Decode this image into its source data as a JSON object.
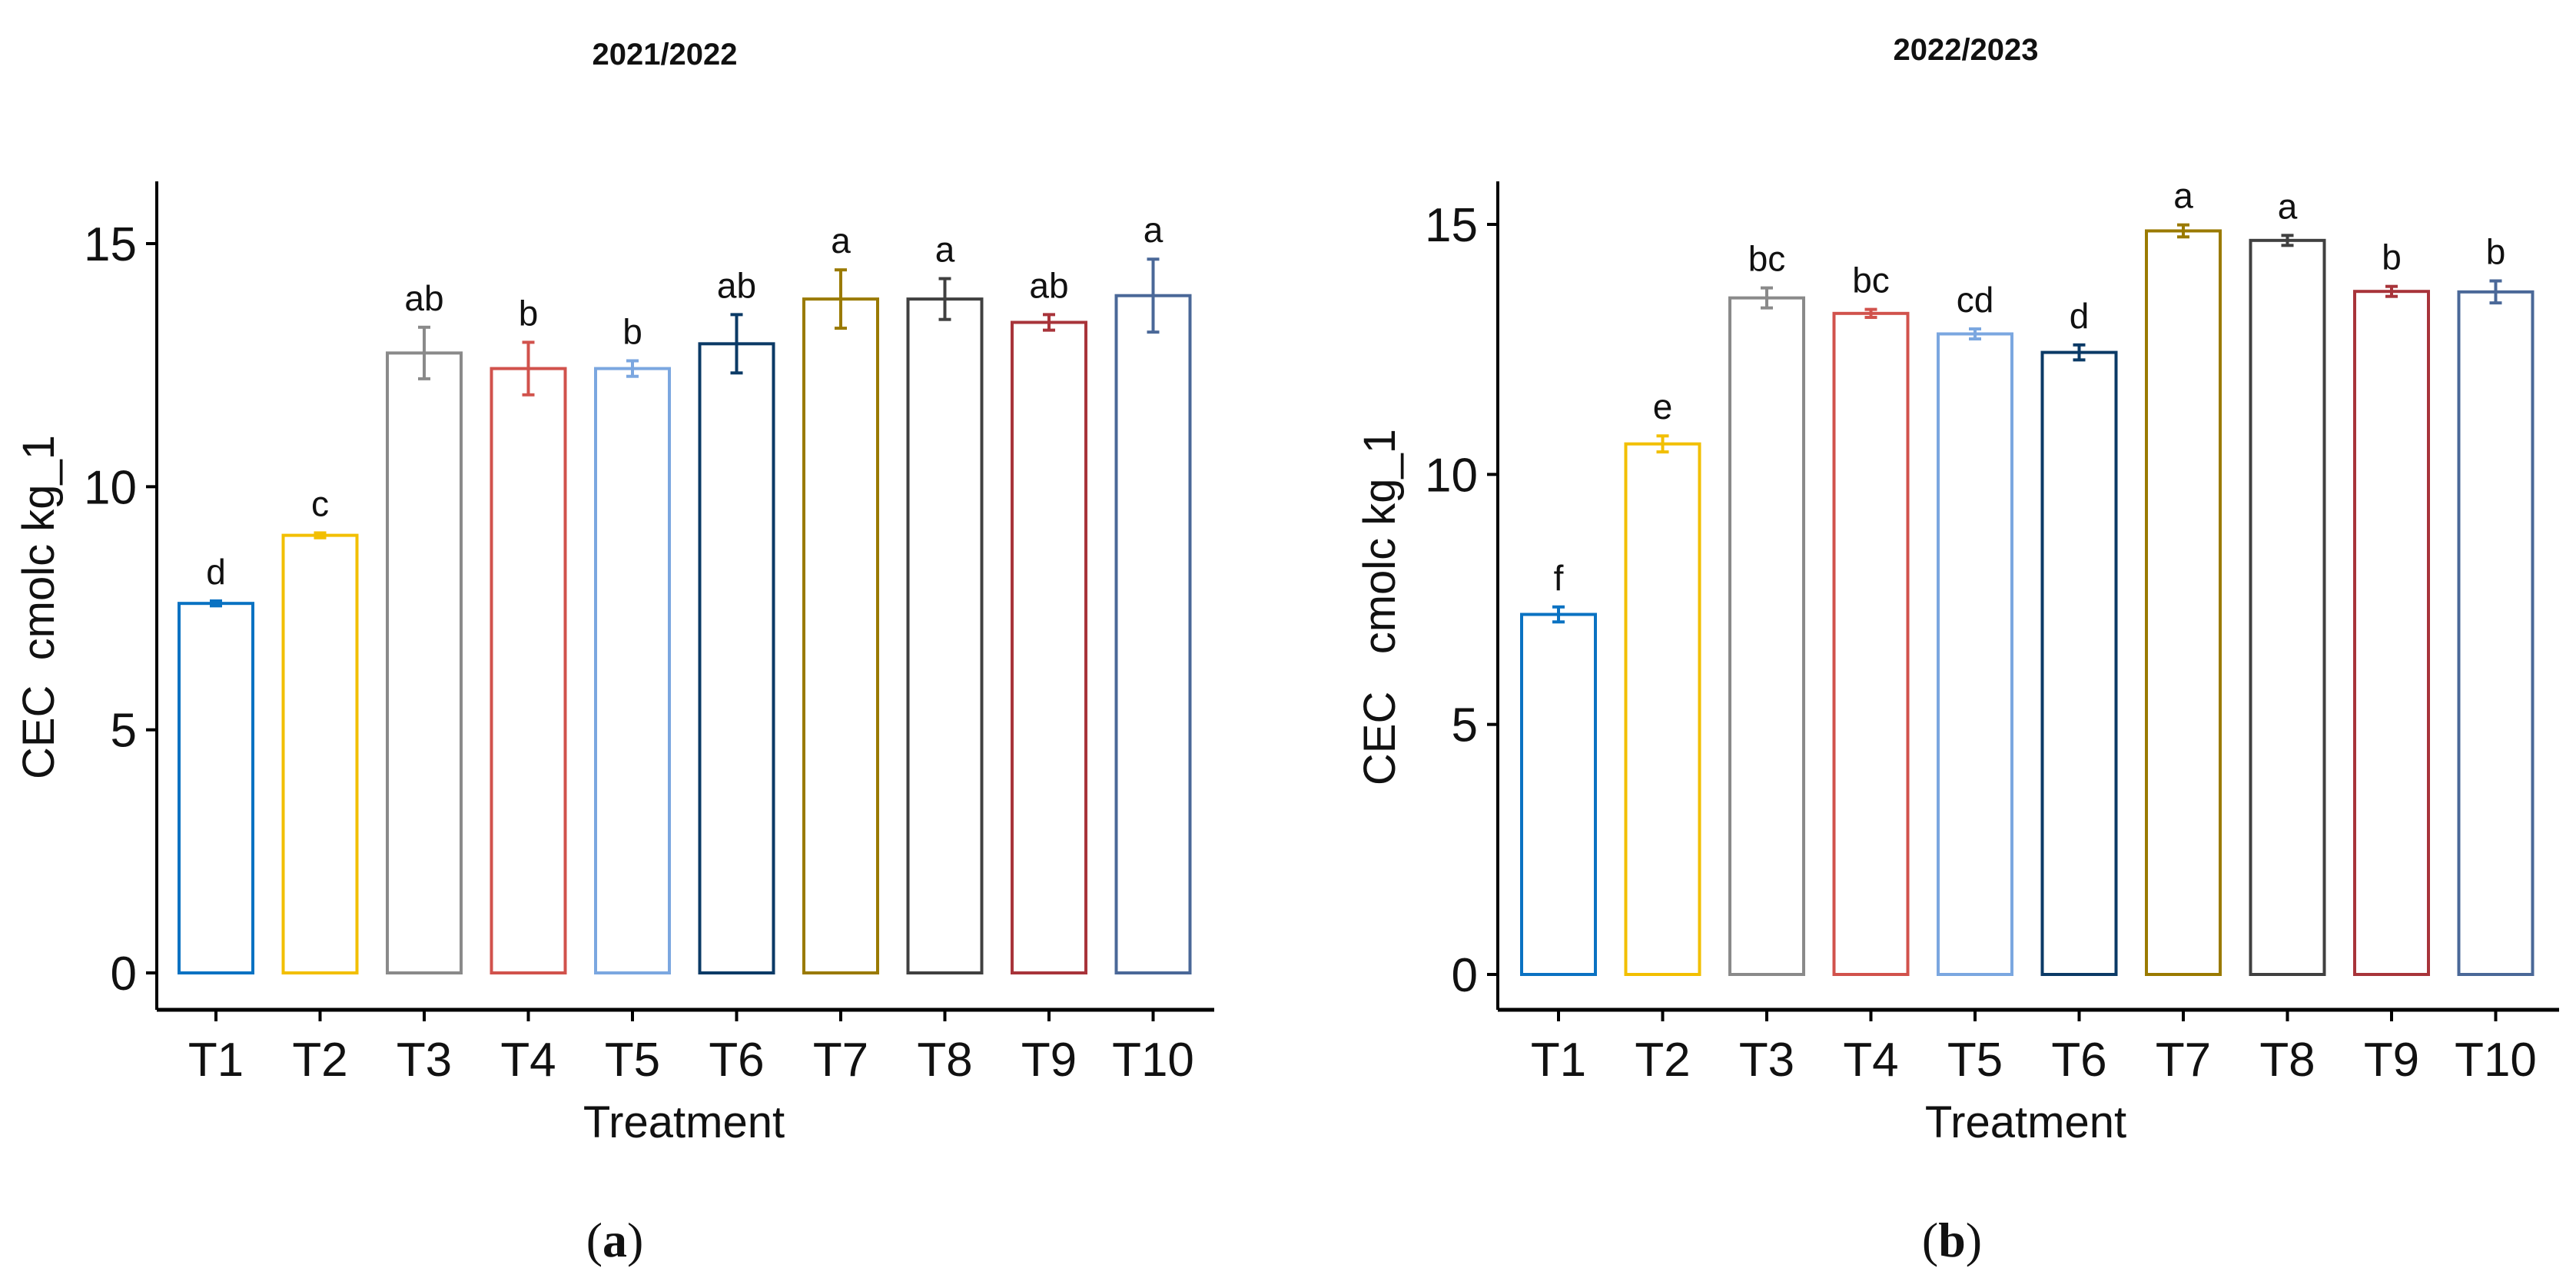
{
  "chart_data": [
    {
      "type": "bar",
      "panel_label": "a",
      "title": "2021/2022",
      "xlabel": "Treatment",
      "ylabel": "CEC  cmolc kg_1",
      "ylim": [
        0,
        16.2
      ],
      "yticks": [
        0,
        5,
        10,
        15
      ],
      "grid": false,
      "categories": [
        "T1",
        "T2",
        "T3",
        "T4",
        "T5",
        "T6",
        "T7",
        "T8",
        "T9",
        "T10"
      ],
      "values": [
        7.6,
        9.0,
        12.75,
        12.43,
        12.43,
        12.94,
        13.86,
        13.86,
        13.38,
        13.93
      ],
      "errors": [
        0.05,
        0.05,
        0.53,
        0.54,
        0.16,
        0.6,
        0.6,
        0.42,
        0.16,
        0.75
      ],
      "letters": [
        "d",
        "c",
        "ab",
        "b",
        "b",
        "ab",
        "a",
        "a",
        "ab",
        "a"
      ],
      "colors": [
        "#0a72c2",
        "#f2bf00",
        "#8a8a8a",
        "#d1524c",
        "#7ba7e0",
        "#0b3a66",
        "#9a7a00",
        "#404040",
        "#a8343a",
        "#4a6898"
      ]
    },
    {
      "type": "bar",
      "panel_label": "b",
      "title": "2022/2023",
      "xlabel": "Treatment",
      "ylabel": "CEC   cmolc kg_1",
      "ylim": [
        0,
        16.2
      ],
      "yticks": [
        0,
        5,
        10,
        15
      ],
      "grid": false,
      "categories": [
        "T1",
        "T2",
        "T3",
        "T4",
        "T5",
        "T6",
        "T7",
        "T8",
        "T9",
        "T10"
      ],
      "values": [
        7.2,
        10.61,
        13.53,
        13.22,
        12.81,
        12.44,
        14.87,
        14.68,
        13.66,
        13.65
      ],
      "errors": [
        0.15,
        0.16,
        0.2,
        0.08,
        0.1,
        0.15,
        0.12,
        0.1,
        0.1,
        0.22
      ],
      "letters": [
        "f",
        "e",
        "bc",
        "bc",
        "cd",
        "d",
        "a",
        "a",
        "b",
        "b"
      ],
      "colors": [
        "#0a72c2",
        "#f2bf00",
        "#8a8a8a",
        "#d1524c",
        "#7ba7e0",
        "#0b3a66",
        "#9a7a00",
        "#404040",
        "#a8343a",
        "#4a6898"
      ]
    }
  ]
}
